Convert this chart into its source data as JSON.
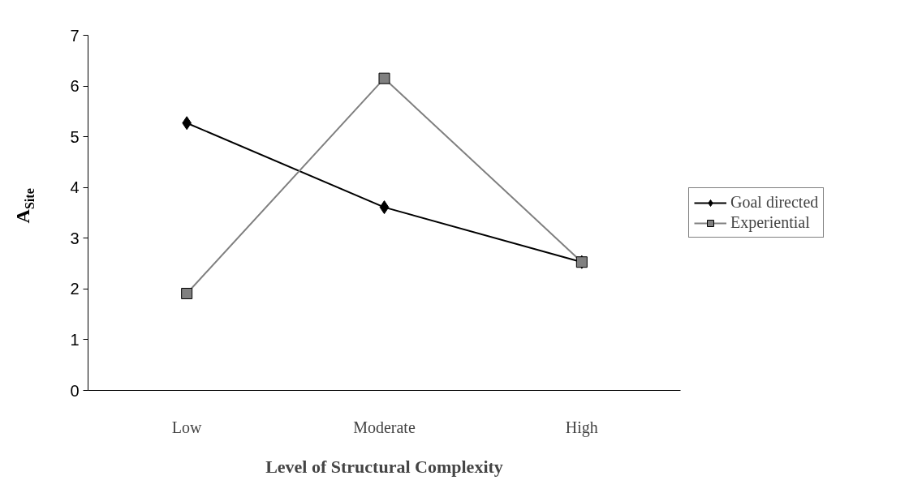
{
  "chart_data": {
    "type": "line",
    "xlabel": "Level of Structural Complexity",
    "ylabel": "A$_{Site}$",
    "categories": [
      "Low",
      "Moderate",
      "High"
    ],
    "series": [
      {
        "name": "Goal directed",
        "color": "#000000",
        "marker": "diamond",
        "values": [
          5.27,
          3.61,
          2.53
        ]
      },
      {
        "name": "Experiential",
        "color": "#808080",
        "marker": "square",
        "values": [
          1.91,
          6.15,
          2.53
        ]
      }
    ],
    "ylim": [
      0,
      7
    ],
    "yticks": [
      0,
      1,
      2,
      3,
      4,
      5,
      6,
      7
    ],
    "grid": false,
    "legend": "right",
    "line_style": "solid"
  }
}
